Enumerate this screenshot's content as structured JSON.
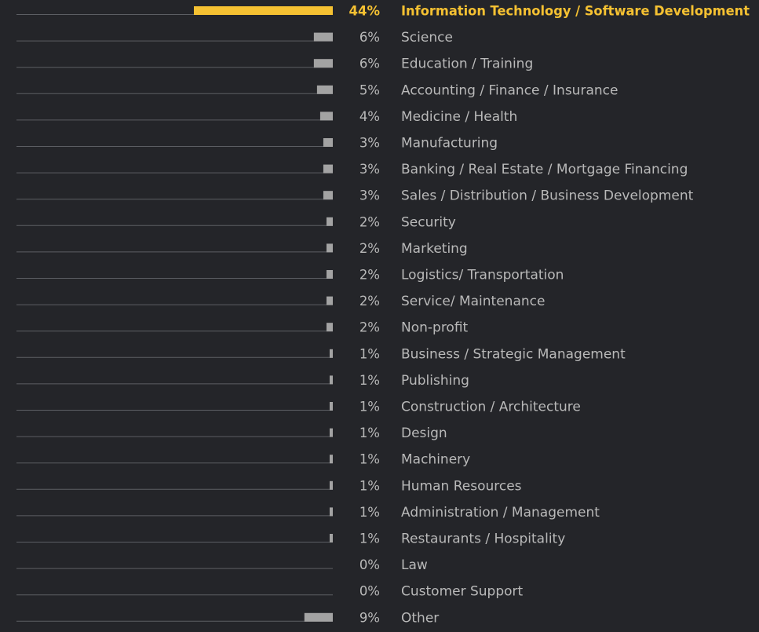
{
  "chart_data": {
    "type": "bar",
    "orientation": "horizontal",
    "highlight_index": 0,
    "colors": {
      "background": "#242529",
      "baseline": "#5c5e63",
      "bar": "#a3a3a3",
      "highlight": "#f5c132",
      "label": "#b9b9b9",
      "highlight_label": "#f5c132"
    },
    "xlim": [
      0,
      44
    ],
    "categories": [
      "Information Technology / Software Development",
      "Science",
      "Education / Training",
      "Accounting / Finance / Insurance",
      "Medicine / Health",
      "Manufacturing",
      "Banking / Real Estate / Mortgage Financing",
      "Sales / Distribution / Business Development",
      "Security",
      "Marketing",
      "Logistics/ Transportation",
      "Service/ Maintenance",
      "Non-profit",
      "Business / Strategic Management",
      "Publishing",
      "Construction / Architecture",
      "Design",
      "Machinery",
      "Human Resources",
      "Administration / Management",
      "Restaurants / Hospitality",
      "Law",
      "Customer Support",
      "Other"
    ],
    "values": [
      44,
      6,
      6,
      5,
      4,
      3,
      3,
      3,
      2,
      2,
      2,
      2,
      2,
      1,
      1,
      1,
      1,
      1,
      1,
      1,
      1,
      0,
      0,
      9
    ],
    "value_labels": [
      "44%",
      "6%",
      "6%",
      "5%",
      "4%",
      "3%",
      "3%",
      "3%",
      "2%",
      "2%",
      "2%",
      "2%",
      "2%",
      "1%",
      "1%",
      "1%",
      "1%",
      "1%",
      "1%",
      "1%",
      "1%",
      "0%",
      "0%",
      "9%"
    ]
  }
}
